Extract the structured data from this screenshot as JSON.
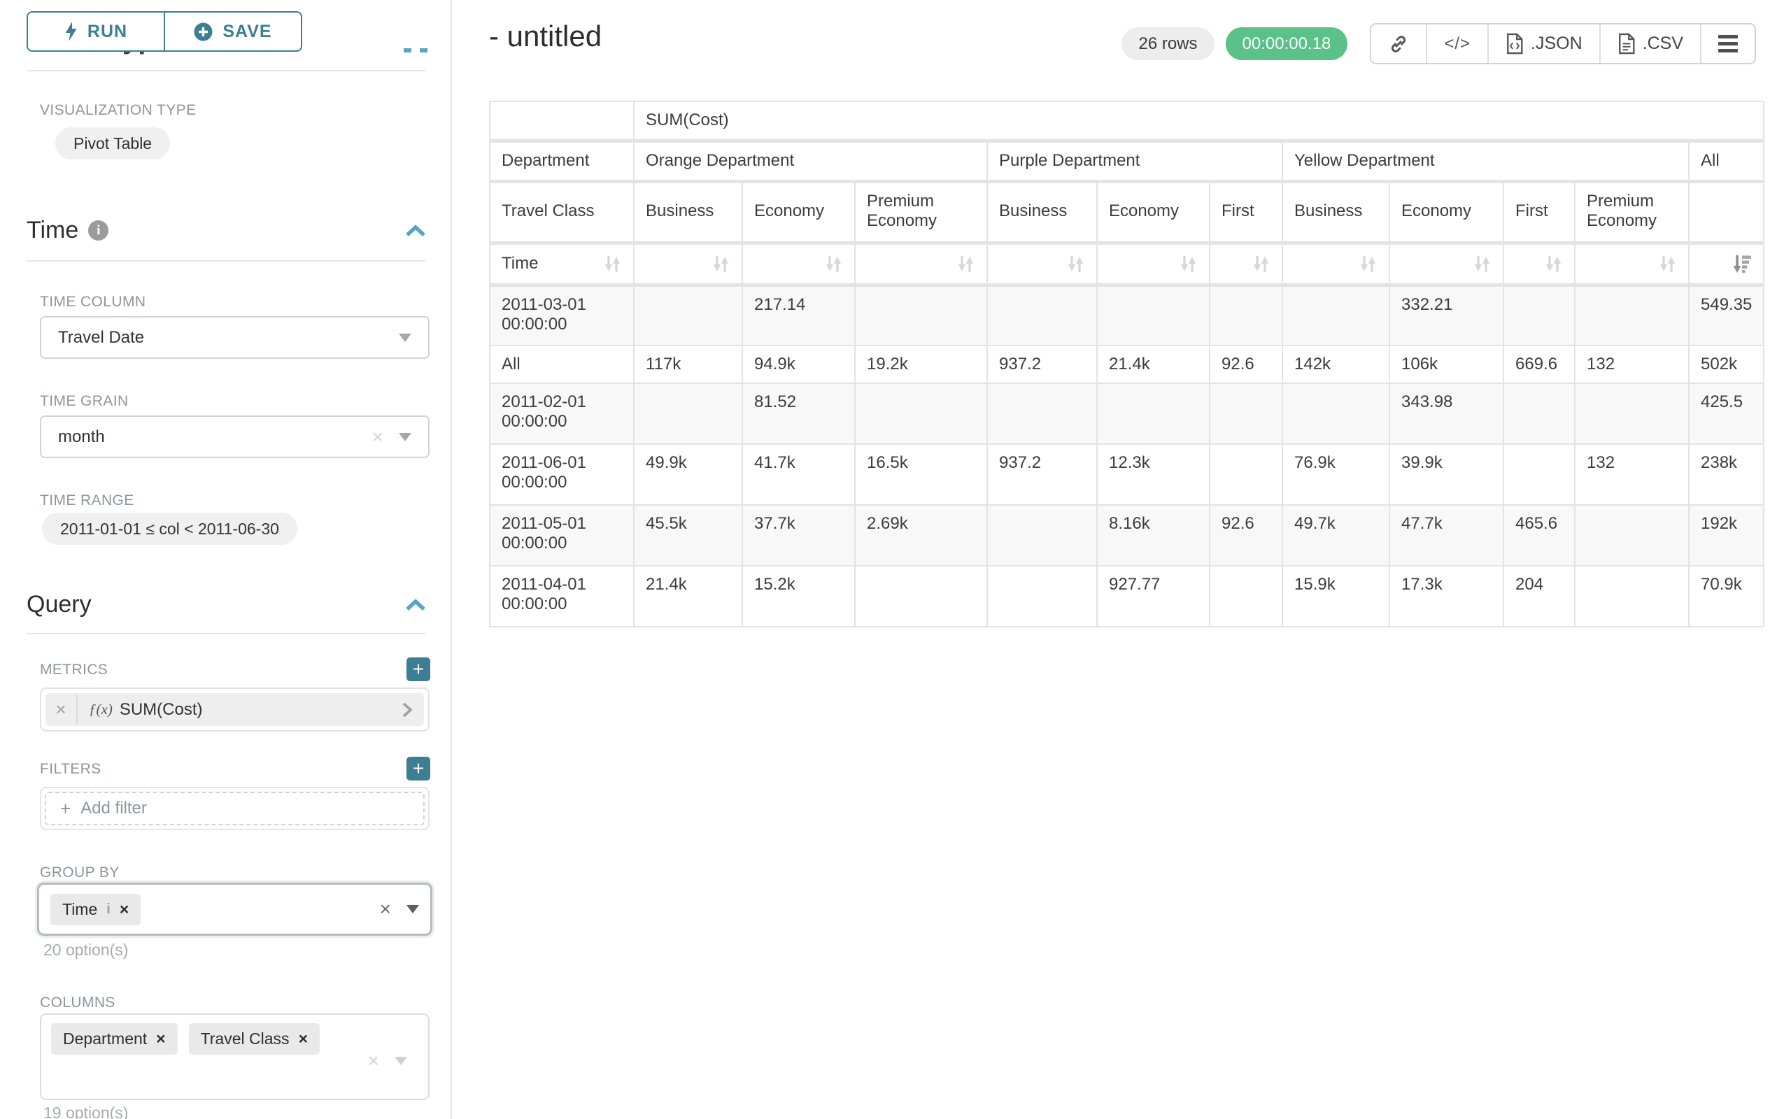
{
  "accent": {
    "teal": "#3d7e93",
    "chevron_blue": "#57a4c6",
    "green": "#5ac189"
  },
  "sidebar": {
    "run_label": "RUN",
    "save_label": "SAVE",
    "chart_type_heading": "Chart Type",
    "viz": {
      "label": "VISUALIZATION TYPE",
      "value": "Pivot Table"
    },
    "time": {
      "title": "Time",
      "column_label": "TIME COLUMN",
      "column_value": "Travel Date",
      "grain_label": "TIME GRAIN",
      "grain_value": "month",
      "range_label": "TIME RANGE",
      "range_value": "2011-01-01 ≤ col < 2011-06-30"
    },
    "query": {
      "title": "Query",
      "metrics_label": "METRICS",
      "metric_prefix": "ƒ(x)",
      "metric_value": "SUM(Cost)",
      "filters_label": "FILTERS",
      "add_filter": "Add filter",
      "group_by_label": "GROUP BY",
      "group_by": [
        "Time"
      ],
      "group_by_hint": "20 option(s)",
      "columns_label": "COLUMNS",
      "columns": [
        "Department",
        "Travel Class"
      ],
      "columns_hint": "19 option(s)"
    }
  },
  "header": {
    "title": "- untitled",
    "rows_badge": "26 rows",
    "timer": "00:00:00.18",
    "code_glyph": "</>",
    "export_json": ".JSON",
    "export_csv": ".CSV"
  },
  "chart_data": {
    "type": "table",
    "metric": "SUM(Cost)",
    "row_dimension_label": "Time",
    "corner_department": "Department",
    "corner_travel_class": "Travel Class",
    "column_groups": [
      {
        "label": "Orange Department",
        "children": [
          "Business",
          "Economy",
          "Premium Economy"
        ]
      },
      {
        "label": "Purple Department",
        "children": [
          "Business",
          "Economy",
          "First"
        ]
      },
      {
        "label": "Yellow Department",
        "children": [
          "Business",
          "Economy",
          "First",
          "Premium Economy"
        ]
      },
      {
        "label": "All",
        "children": [
          ""
        ]
      }
    ],
    "rows": [
      {
        "label": "2011-03-01 00:00:00",
        "values": [
          "",
          "217.14",
          "",
          "",
          "",
          "",
          "",
          "332.21",
          "",
          "",
          "549.35"
        ]
      },
      {
        "label": "All",
        "values": [
          "117k",
          "94.9k",
          "19.2k",
          "937.2",
          "21.4k",
          "92.6",
          "142k",
          "106k",
          "669.6",
          "132",
          "502k"
        ]
      },
      {
        "label": "2011-02-01 00:00:00",
        "values": [
          "",
          "81.52",
          "",
          "",
          "",
          "",
          "",
          "343.98",
          "",
          "",
          "425.5"
        ]
      },
      {
        "label": "2011-06-01 00:00:00",
        "values": [
          "49.9k",
          "41.7k",
          "16.5k",
          "937.2",
          "12.3k",
          "",
          "76.9k",
          "39.9k",
          "",
          "132",
          "238k"
        ]
      },
      {
        "label": "2011-05-01 00:00:00",
        "values": [
          "45.5k",
          "37.7k",
          "2.69k",
          "",
          "8.16k",
          "92.6",
          "49.7k",
          "47.7k",
          "465.6",
          "",
          "192k"
        ]
      },
      {
        "label": "2011-04-01 00:00:00",
        "values": [
          "21.4k",
          "15.2k",
          "",
          "",
          "927.77",
          "",
          "15.9k",
          "17.3k",
          "204",
          "",
          "70.9k"
        ]
      }
    ]
  }
}
